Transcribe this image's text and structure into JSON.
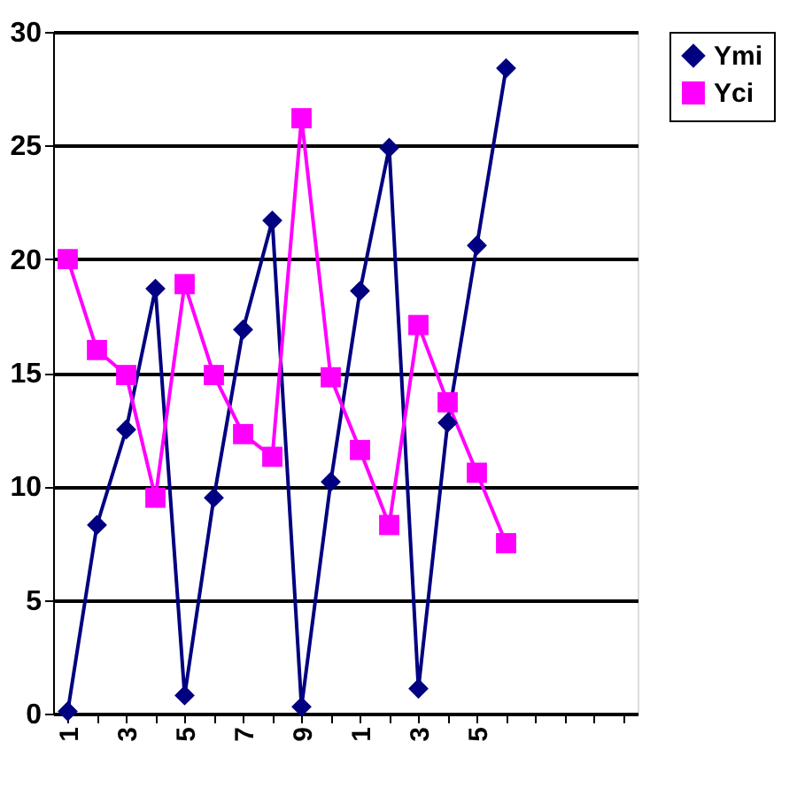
{
  "chart_data": {
    "type": "line",
    "categories": [
      "1",
      null,
      "3",
      null,
      "5",
      null,
      "7",
      null,
      "9",
      null,
      "1",
      null,
      "3",
      null,
      "5",
      null,
      null,
      null,
      null,
      null
    ],
    "series": [
      {
        "name": "Ymi",
        "color": "#000080",
        "marker": "diamond",
        "values": [
          0.1,
          8.3,
          12.5,
          18.7,
          0.8,
          9.5,
          16.9,
          21.7,
          0.3,
          10.2,
          18.6,
          24.9,
          1.1,
          12.8,
          20.6,
          28.4,
          null,
          null,
          null,
          null
        ]
      },
      {
        "name": "Yci",
        "color": "#ff00ff",
        "marker": "square",
        "values": [
          20.0,
          16.0,
          14.9,
          9.5,
          18.9,
          14.9,
          12.3,
          11.3,
          26.2,
          14.8,
          11.6,
          8.3,
          17.1,
          13.7,
          10.6,
          7.5,
          null,
          null,
          null,
          null
        ]
      }
    ],
    "ylim": [
      0,
      30
    ],
    "yticks": [
      0,
      5,
      10,
      15,
      20,
      25,
      30
    ],
    "grid": "y",
    "legend": "right",
    "line_style": "solid"
  }
}
